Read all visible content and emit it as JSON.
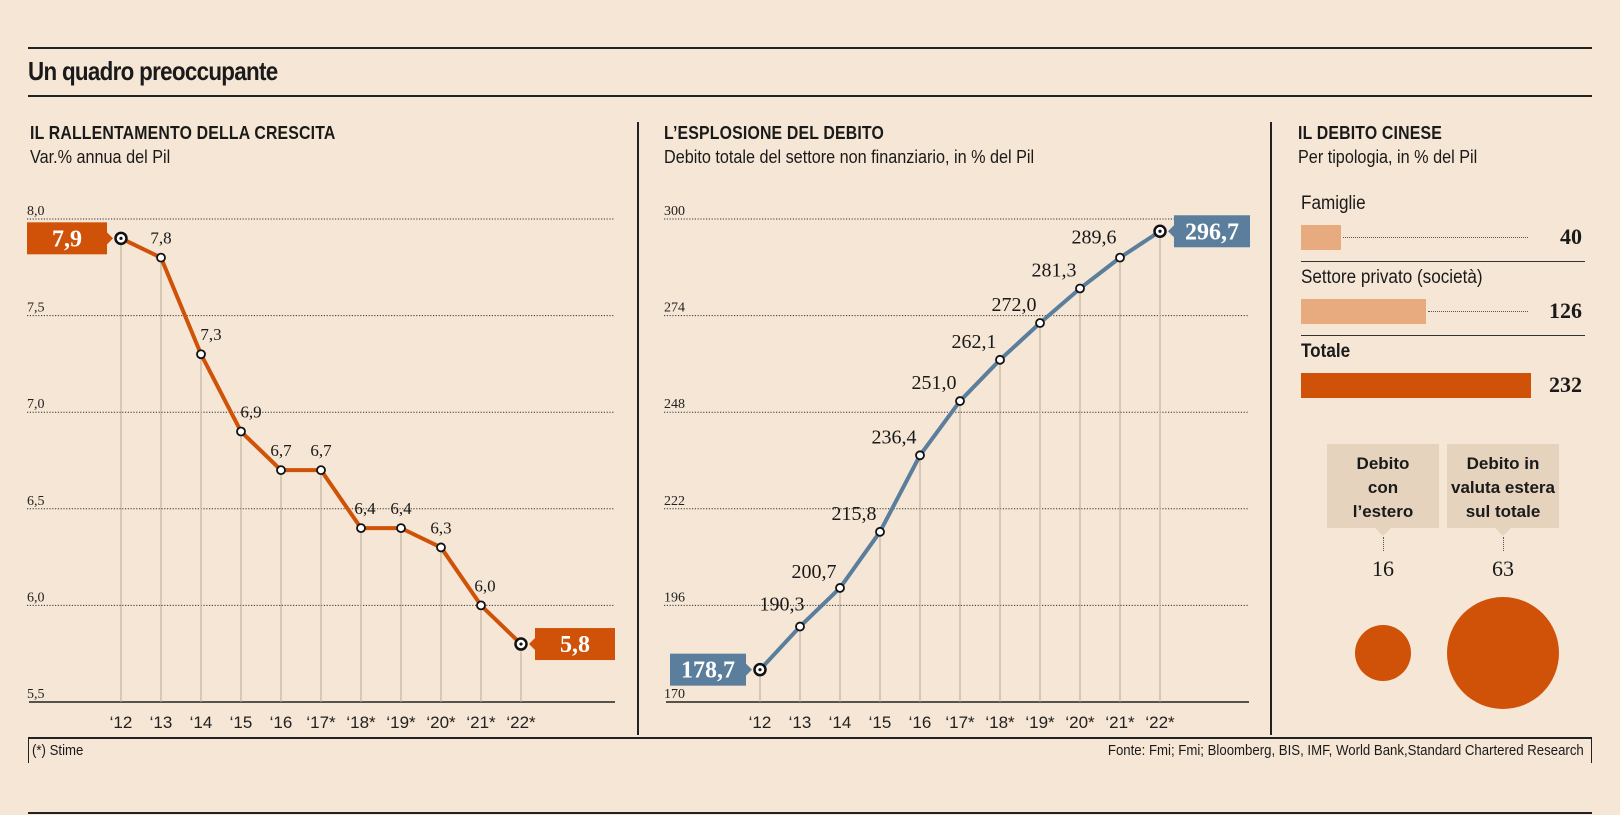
{
  "header": {
    "title": "Un quadro preoccupante"
  },
  "footer": {
    "note": "(*) Stime",
    "source": "Fonte: Fmi; Fmi;  Bloomberg, BIS, IMF, World Bank,Standard Chartered Research"
  },
  "colors": {
    "orange": "#cf5208",
    "blue": "#5b7e9d",
    "light_orange": "#e8ab80",
    "background": "#f5e6d5",
    "callout": "#e6d3bd"
  },
  "chart_data": [
    {
      "type": "line",
      "title": "IL RALLENTAMENTO DELLA CRESCITA",
      "subtitle": "Var.% annua del Pil",
      "categories": [
        "‘12",
        "‘13",
        "‘14",
        "‘15",
        "‘16",
        "‘17*",
        "‘18*",
        "‘19*",
        "‘20*",
        "‘21*",
        "‘22*"
      ],
      "values": [
        7.9,
        7.8,
        7.3,
        6.9,
        6.7,
        6.7,
        6.4,
        6.4,
        6.3,
        6.0,
        5.8
      ],
      "labels": [
        "7,9",
        "7,8",
        "7,3",
        "6,9",
        "6,7",
        "6,7",
        "6,4",
        "6,4",
        "6,3",
        "6,0",
        "5,8"
      ],
      "yticks": [
        8.0,
        7.5,
        7.0,
        6.5,
        6.0,
        5.5
      ],
      "ytick_labels": [
        "8,0",
        "7,5",
        "7,0",
        "6,5",
        "6,0",
        "5,5"
      ],
      "ylim": [
        5.5,
        8.0
      ],
      "grid": true,
      "color": "#cf5208"
    },
    {
      "type": "line",
      "title": "L’ESPLOSIONE DEL DEBITO",
      "subtitle": "Debito totale del settore non finanziario, in % del Pil",
      "categories": [
        "‘12",
        "‘13",
        "‘14",
        "‘15",
        "‘16",
        "‘17*",
        "‘18*",
        "‘19*",
        "‘20*",
        "‘21*",
        "‘22*"
      ],
      "values": [
        178.7,
        190.3,
        200.7,
        215.8,
        236.4,
        251.0,
        262.1,
        272.0,
        281.3,
        289.6,
        296.7
      ],
      "labels": [
        "178,7",
        "190,3",
        "200,7",
        "215,8",
        "236,4",
        "251,0",
        "262,1",
        "272,0",
        "281,3",
        "289,6",
        "296,7"
      ],
      "yticks": [
        300,
        274,
        248,
        222,
        196,
        170
      ],
      "ytick_labels": [
        "300",
        "274",
        "248",
        "222",
        "196",
        "170"
      ],
      "ylim": [
        170,
        300
      ],
      "grid": true,
      "color": "#5b7e9d"
    },
    {
      "type": "bar",
      "title": "IL DEBITO CINESE",
      "subtitle": "Per tipologia, in % del Pil",
      "categories": [
        "Famiglie",
        "Settore privato (società)",
        "Totale"
      ],
      "values": [
        40,
        126,
        232
      ],
      "bubbles": [
        {
          "label_lines": [
            "Debito",
            "con",
            "l’estero"
          ],
          "value": 16
        },
        {
          "label_lines": [
            "Debito in",
            "valuta estera",
            "sul totale"
          ],
          "value": 63
        }
      ]
    }
  ]
}
